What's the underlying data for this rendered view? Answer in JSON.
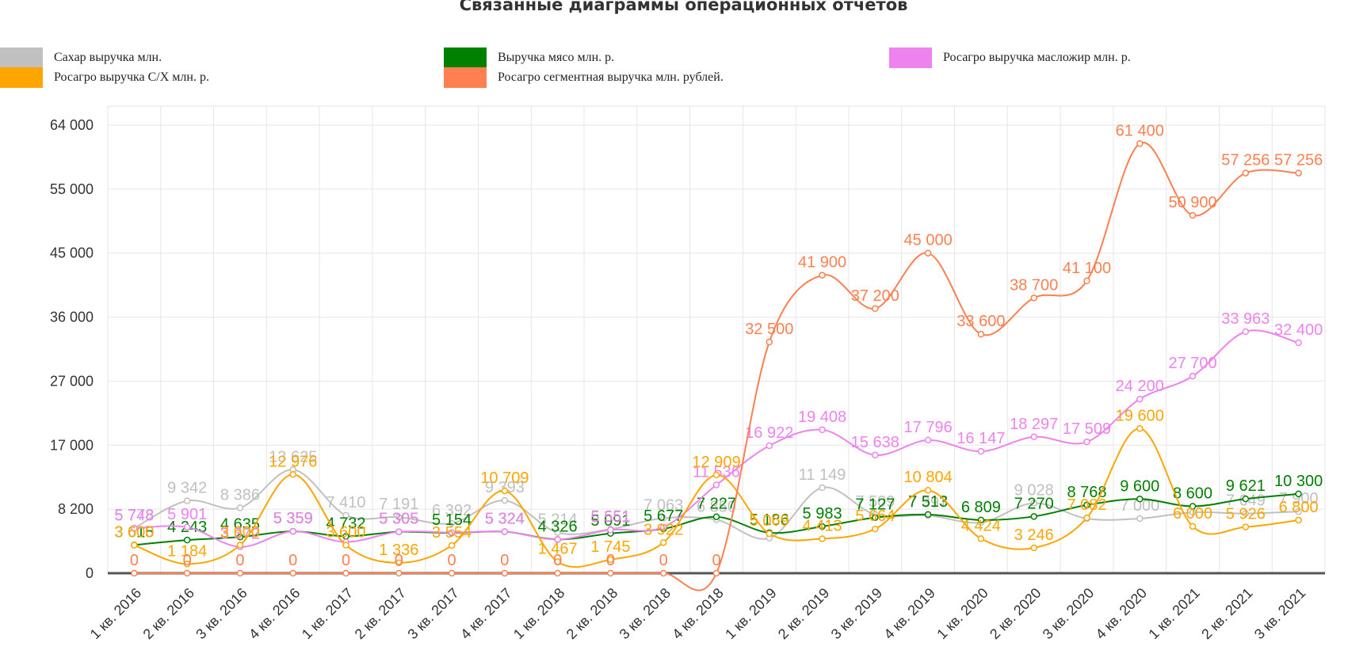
{
  "chart_data": {
    "type": "line",
    "title": "Связанные диаграммы операционных отчетов",
    "xlabel": "",
    "ylabel": "",
    "categories": [
      "1 кв. 2016",
      "2 кв. 2016",
      "3 кв. 2016",
      "4 кв. 2016",
      "1 кв. 2017",
      "2 кв. 2017",
      "3 кв. 2017",
      "4 кв. 2017",
      "1 кв. 2018",
      "2 кв. 2018",
      "3 кв. 2018",
      "4 кв. 2018",
      "1 кв. 2019",
      "2 кв. 2019",
      "3 кв. 2019",
      "4 кв. 2019",
      "1 кв. 2020",
      "2 кв. 2020",
      "3 кв. 2020",
      "4 кв. 2020",
      "1 кв. 2021",
      "2 кв. 2021",
      "3 кв. 2021"
    ],
    "y_ticks": [
      0,
      8200,
      17000,
      27000,
      36000,
      45000,
      55000,
      64000
    ],
    "y_tick_labels": [
      "0",
      "8 200",
      "17 000",
      "27 000",
      "36 000",
      "45 000",
      "55 000",
      "64 000"
    ],
    "grid": true,
    "legend_position": "top",
    "series": [
      {
        "name": "Сахар выручка млн.",
        "color": "#c0c0c0",
        "values": [
          5778,
          9342,
          8386,
          13625,
          7410,
          7191,
          6392,
          9393,
          5214,
          5651,
          7063,
          6850,
          4500,
          11149,
          7509,
          7397,
          6500,
          9028,
          7000,
          7000,
          7800,
          7649,
          7900
        ],
        "labels": [
          "5 778",
          "9 342",
          "8 386",
          "13 625",
          "7 410",
          "7 191",
          "6 392",
          "9 393",
          "5 214",
          "5 651",
          "7 063",
          "6 850",
          "",
          "11 149",
          "7 509",
          "7 397",
          "",
          "9 028",
          "",
          "7 000",
          "",
          "7 649",
          "7 900"
        ]
      },
      {
        "name": "Выручка мясо млн. р.",
        "color": "#008000",
        "values": [
          3615,
          4243,
          4635,
          5359,
          4732,
          5305,
          5154,
          5324,
          4326,
          5091,
          5677,
          7227,
          5186,
          5983,
          7127,
          7513,
          6809,
          7270,
          8768,
          9600,
          8600,
          9621,
          10300
        ],
        "labels": [
          "3 615",
          "4 243",
          "4 635",
          "5 359",
          "4 732",
          "5 305",
          "5 154",
          "5 324",
          "4 326",
          "5 091",
          "5 677",
          "7 227",
          "5 186",
          "5 983",
          "7 127",
          "7 513",
          "6 809",
          "7 270",
          "8 768",
          "9 600",
          "8 600",
          "9 621",
          "10 300"
        ]
      },
      {
        "name": "Росагро выручка масложир млн. р.",
        "color": "#ee82ee",
        "values": [
          5748,
          5901,
          3372,
          5359,
          4000,
          5305,
          5200,
          5324,
          4326,
          5551,
          5900,
          11536,
          16922,
          19408,
          15638,
          17796,
          16147,
          18297,
          17509,
          24200,
          27700,
          33963,
          32400
        ],
        "labels": [
          "5 748",
          "5 901",
          "3 372",
          "5 359",
          "",
          "5 305",
          "",
          "5 324",
          "",
          "5 551",
          "",
          "11 536",
          "16 922",
          "19 408",
          "15 638",
          "17 796",
          "16 147",
          "18 297",
          "17 509",
          "24 200",
          "27 700",
          "33 963",
          "32 400"
        ]
      },
      {
        "name": "Росагро выручка С/Х млн. р.",
        "color": "#ffa500",
        "values": [
          3600,
          1184,
          3600,
          12976,
          3600,
          1336,
          3554,
          10709,
          1467,
          1745,
          3922,
          12909,
          5069,
          4413,
          5664,
          10804,
          4424,
          3246,
          7082,
          19600,
          6000,
          5926,
          6800
        ],
        "labels": [
          "3 600",
          "1 184",
          "3 600",
          "12 976",
          "3 600",
          "1 336",
          "3 554",
          "10 709",
          "1 467",
          "1 745",
          "3 922",
          "12 909",
          "5 069",
          "4 413",
          "5 664",
          "10 804",
          "4 424",
          "3 246",
          "7 082",
          "19 600",
          "6 000",
          "5 926",
          "6 800"
        ]
      },
      {
        "name": "Росагро сегментная выручка млн. рублей.",
        "color": "#ff7f50",
        "values": [
          0,
          0,
          0,
          0,
          0,
          0,
          0,
          0,
          0,
          0,
          0,
          0,
          32500,
          41900,
          37200,
          45000,
          33600,
          38700,
          41100,
          61400,
          50900,
          57256,
          57256
        ],
        "labels": [
          "0",
          "0",
          "0",
          "0",
          "0",
          "0",
          "0",
          "0",
          "0",
          "0",
          "0",
          "0",
          "32 500",
          "41 900",
          "37 200",
          "45 000",
          "33 600",
          "38 700",
          "41 100",
          "61 400",
          "50 900",
          "57 256",
          "57 256"
        ]
      }
    ]
  }
}
